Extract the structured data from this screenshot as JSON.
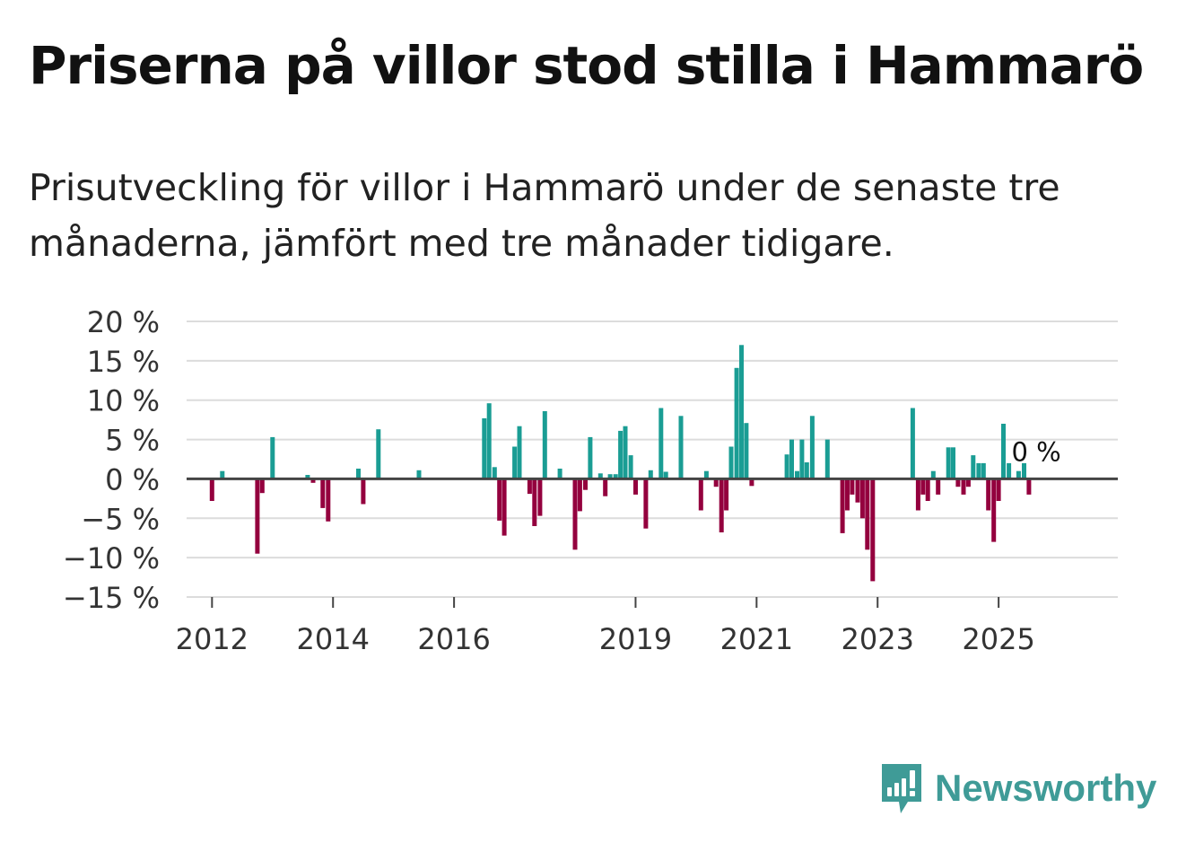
{
  "header": {
    "title": "Priserna på villor stod stilla i Hammarö",
    "subtitle": "Prisutveckling för villor i Hammarö under de senaste tre månaderna, jämfört med tre månader tidigare."
  },
  "brand": {
    "name": "Newsworthy"
  },
  "colors": {
    "positive": "#1a9d94",
    "negative": "#94003e",
    "grid": "#dcdcdc",
    "zero_line": "#444444",
    "text": "#333333",
    "brand": "#3f9b97"
  },
  "chart_data": {
    "type": "bar",
    "title": "Priserna på villor stod stilla i Hammarö",
    "subtitle": "Prisutveckling för villor i Hammarö under de senaste tre månaderna, jämfört med tre månader tidigare.",
    "xlabel": "",
    "ylabel": "",
    "unit": "%",
    "ylim": [
      -15,
      20
    ],
    "yticks": [
      20,
      15,
      10,
      5,
      0,
      -5,
      -10,
      -15
    ],
    "ytick_labels": [
      "20 %",
      "15 %",
      "10 %",
      "5 %",
      "0 %",
      "−5 %",
      "−10 %",
      "−15 %"
    ],
    "xlim": [
      2011.58,
      2026.97
    ],
    "xticks": [
      2012,
      2014,
      2016,
      2019,
      2021,
      2023,
      2025
    ],
    "xtick_labels": [
      "2012",
      "2014",
      "2016",
      "2019",
      "2021",
      "2023",
      "2025"
    ],
    "annotation": {
      "text": "0 %",
      "x": 2025.42,
      "y": 0
    },
    "grid": true,
    "points": [
      {
        "x": 2012.0,
        "y": -2.8
      },
      {
        "x": 2012.17,
        "y": 1.0
      },
      {
        "x": 2012.75,
        "y": -9.5
      },
      {
        "x": 2012.83,
        "y": -1.8
      },
      {
        "x": 2013.0,
        "y": 5.3
      },
      {
        "x": 2013.58,
        "y": 0.5
      },
      {
        "x": 2013.67,
        "y": -0.5
      },
      {
        "x": 2013.83,
        "y": -3.7
      },
      {
        "x": 2013.92,
        "y": -5.4
      },
      {
        "x": 2014.42,
        "y": 1.3
      },
      {
        "x": 2014.5,
        "y": -3.2
      },
      {
        "x": 2014.75,
        "y": 6.3
      },
      {
        "x": 2015.42,
        "y": 1.1
      },
      {
        "x": 2016.5,
        "y": 7.7
      },
      {
        "x": 2016.58,
        "y": 9.6
      },
      {
        "x": 2016.67,
        "y": 1.5
      },
      {
        "x": 2016.75,
        "y": -5.3
      },
      {
        "x": 2016.83,
        "y": -7.2
      },
      {
        "x": 2017.0,
        "y": 4.1
      },
      {
        "x": 2017.08,
        "y": 6.7
      },
      {
        "x": 2017.25,
        "y": -1.9
      },
      {
        "x": 2017.33,
        "y": -6.0
      },
      {
        "x": 2017.42,
        "y": -4.7
      },
      {
        "x": 2017.5,
        "y": 8.6
      },
      {
        "x": 2017.75,
        "y": 1.3
      },
      {
        "x": 2018.0,
        "y": -9.0
      },
      {
        "x": 2018.08,
        "y": -4.1
      },
      {
        "x": 2018.17,
        "y": -1.4
      },
      {
        "x": 2018.25,
        "y": 5.3
      },
      {
        "x": 2018.42,
        "y": 0.7
      },
      {
        "x": 2018.5,
        "y": -2.2
      },
      {
        "x": 2018.58,
        "y": 0.6
      },
      {
        "x": 2018.67,
        "y": 0.6
      },
      {
        "x": 2018.75,
        "y": 6.1
      },
      {
        "x": 2018.83,
        "y": 6.7
      },
      {
        "x": 2018.92,
        "y": 3.0
      },
      {
        "x": 2019.0,
        "y": -2.0
      },
      {
        "x": 2019.17,
        "y": -6.3
      },
      {
        "x": 2019.25,
        "y": 1.1
      },
      {
        "x": 2019.42,
        "y": 9.0
      },
      {
        "x": 2019.5,
        "y": 0.9
      },
      {
        "x": 2019.75,
        "y": 8.0
      },
      {
        "x": 2020.08,
        "y": -4.0
      },
      {
        "x": 2020.17,
        "y": 1.0
      },
      {
        "x": 2020.33,
        "y": -1.0
      },
      {
        "x": 2020.42,
        "y": -6.8
      },
      {
        "x": 2020.5,
        "y": -4.0
      },
      {
        "x": 2020.58,
        "y": 4.1
      },
      {
        "x": 2020.67,
        "y": 14.1
      },
      {
        "x": 2020.75,
        "y": 17.0
      },
      {
        "x": 2020.83,
        "y": 7.1
      },
      {
        "x": 2020.92,
        "y": -0.9
      },
      {
        "x": 2021.5,
        "y": 3.1
      },
      {
        "x": 2021.58,
        "y": 5.0
      },
      {
        "x": 2021.67,
        "y": 1.0
      },
      {
        "x": 2021.75,
        "y": 5.0
      },
      {
        "x": 2021.83,
        "y": 2.1
      },
      {
        "x": 2021.92,
        "y": 8.0
      },
      {
        "x": 2022.17,
        "y": 5.0
      },
      {
        "x": 2022.42,
        "y": -6.9
      },
      {
        "x": 2022.5,
        "y": -4.0
      },
      {
        "x": 2022.58,
        "y": -2.0
      },
      {
        "x": 2022.67,
        "y": -3.0
      },
      {
        "x": 2022.75,
        "y": -5.0
      },
      {
        "x": 2022.83,
        "y": -9.0
      },
      {
        "x": 2022.92,
        "y": -13.0
      },
      {
        "x": 2023.58,
        "y": 9.0
      },
      {
        "x": 2023.67,
        "y": -4.0
      },
      {
        "x": 2023.75,
        "y": -2.0
      },
      {
        "x": 2023.83,
        "y": -2.8
      },
      {
        "x": 2023.92,
        "y": 1.0
      },
      {
        "x": 2024.0,
        "y": -2.0
      },
      {
        "x": 2024.17,
        "y": 4.0
      },
      {
        "x": 2024.25,
        "y": 4.0
      },
      {
        "x": 2024.33,
        "y": -1.0
      },
      {
        "x": 2024.42,
        "y": -2.0
      },
      {
        "x": 2024.5,
        "y": -1.0
      },
      {
        "x": 2024.58,
        "y": 3.0
      },
      {
        "x": 2024.67,
        "y": 2.0
      },
      {
        "x": 2024.75,
        "y": 2.0
      },
      {
        "x": 2024.83,
        "y": -4.0
      },
      {
        "x": 2024.92,
        "y": -8.0
      },
      {
        "x": 2025.0,
        "y": -2.8
      },
      {
        "x": 2025.08,
        "y": 7.0
      },
      {
        "x": 2025.17,
        "y": 2.0
      },
      {
        "x": 2025.33,
        "y": 1.0
      },
      {
        "x": 2025.42,
        "y": 2.0
      },
      {
        "x": 2025.5,
        "y": -2.0
      }
    ]
  }
}
